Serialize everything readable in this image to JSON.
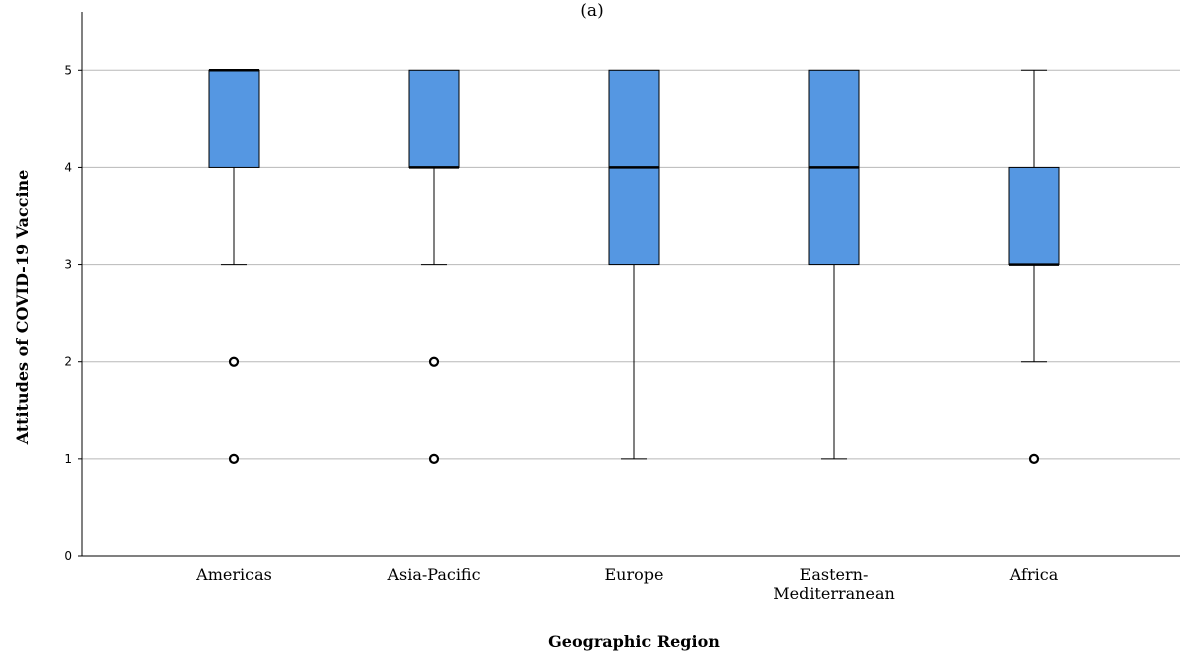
{
  "panel_label": "(a)",
  "chart_data": {
    "type": "box",
    "xlabel": "Geographic Region",
    "ylabel": "Attitudes of COVID-19 Vaccine",
    "ylim": [
      0,
      5.6
    ],
    "yticks": [
      0,
      1,
      2,
      3,
      4,
      5
    ],
    "grid": true,
    "box_color": "#5597e2",
    "categories": [
      {
        "label": [
          "Americas"
        ],
        "whisker_low": 3,
        "q1": 4,
        "median": 5,
        "q3": 5,
        "whisker_high": 5,
        "outliers": [
          2,
          1
        ]
      },
      {
        "label": [
          "Asia-Pacific"
        ],
        "whisker_low": 3,
        "q1": 4,
        "median": 4,
        "q3": 5,
        "whisker_high": 5,
        "outliers": [
          2,
          1
        ]
      },
      {
        "label": [
          "Europe"
        ],
        "whisker_low": 1,
        "q1": 3,
        "median": 4,
        "q3": 5,
        "whisker_high": 5,
        "outliers": []
      },
      {
        "label": [
          "Eastern-",
          "Mediterranean"
        ],
        "whisker_low": 1,
        "q1": 3,
        "median": 4,
        "q3": 5,
        "whisker_high": 5,
        "outliers": []
      },
      {
        "label": [
          "Africa"
        ],
        "whisker_low": 2,
        "q1": 3,
        "median": 3,
        "q3": 4,
        "whisker_high": 5,
        "outliers": [
          1
        ]
      }
    ]
  }
}
